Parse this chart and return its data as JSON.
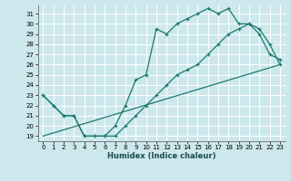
{
  "xlabel": "Humidex (Indice chaleur)",
  "bg_color": "#cde8ed",
  "line_color": "#1a7a6e",
  "grid_color": "#ffffff",
  "xlim": [
    -0.5,
    23.5
  ],
  "ylim": [
    18.5,
    31.8
  ],
  "xticks": [
    0,
    1,
    2,
    3,
    4,
    5,
    6,
    7,
    8,
    9,
    10,
    11,
    12,
    13,
    14,
    15,
    16,
    17,
    18,
    19,
    20,
    21,
    22,
    23
  ],
  "yticks": [
    19,
    20,
    21,
    22,
    23,
    24,
    25,
    26,
    27,
    28,
    29,
    30,
    31
  ],
  "series1_x": [
    0,
    1,
    2,
    3,
    4,
    5,
    6,
    7,
    8,
    9,
    10,
    11,
    12,
    13,
    14,
    15,
    16,
    17,
    18,
    19,
    20,
    21,
    22,
    23
  ],
  "series1_y": [
    23,
    22,
    21,
    21,
    19,
    19,
    19,
    20,
    22,
    24.5,
    25,
    29.5,
    29,
    30,
    30.5,
    31,
    31.5,
    31,
    31.5,
    30,
    30,
    29,
    27,
    26.5
  ],
  "series2_x": [
    0,
    1,
    2,
    3,
    4,
    5,
    6,
    7,
    8,
    9,
    10,
    11,
    12,
    13,
    14,
    15,
    16,
    17,
    18,
    19,
    20,
    21,
    22,
    23
  ],
  "series2_y": [
    23,
    22,
    21,
    21,
    19,
    19,
    19,
    19,
    20,
    21,
    22,
    23,
    24,
    25,
    25.5,
    26,
    27,
    28,
    29,
    29.5,
    30,
    29.5,
    28,
    26
  ],
  "series3_x": [
    0,
    23
  ],
  "series3_y": [
    19,
    26
  ]
}
